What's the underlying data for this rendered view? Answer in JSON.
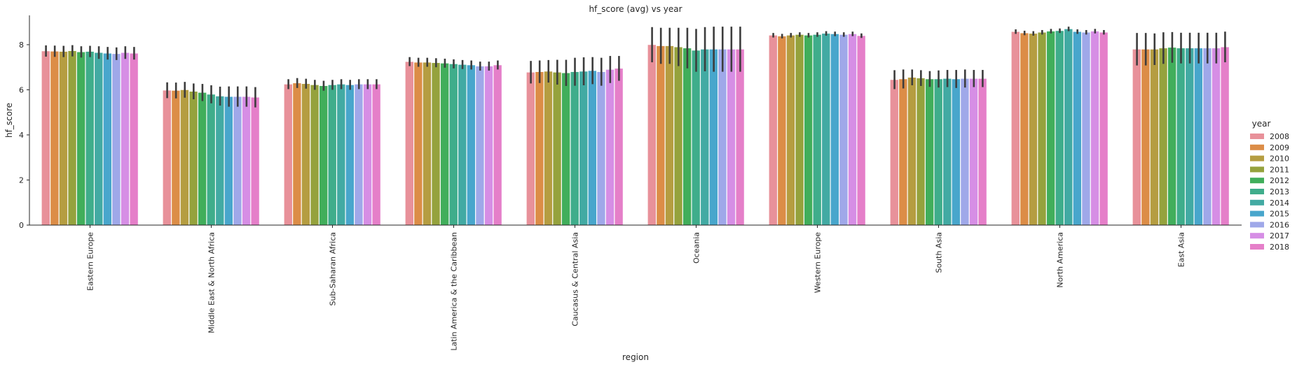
{
  "chart_data": {
    "type": "bar",
    "title": "hf_score (avg) vs year",
    "xlabel": "region",
    "ylabel": "hf_score",
    "ylim": [
      0,
      9.3
    ],
    "yticks": [
      0,
      2,
      4,
      6,
      8
    ],
    "grid": false,
    "legend": {
      "title": "year",
      "placement": "right"
    },
    "categories": [
      "Eastern Europe",
      "Middle East & North Africa",
      "Sub-Saharan Africa",
      "Latin America & the Caribbean",
      "Caucasus & Central Asia",
      "Oceania",
      "Western Europe",
      "South Asia",
      "North America",
      "East Asia"
    ],
    "colors": [
      "#e8919a",
      "#dc8d47",
      "#b59d41",
      "#95a23d",
      "#41ae5b",
      "#3fad8b",
      "#42aaa3",
      "#48a6cc",
      "#9fa8e9",
      "#d68ee5",
      "#e57fc9"
    ],
    "series": [
      {
        "name": "2008",
        "values": [
          7.72,
          5.98,
          6.25,
          7.25,
          6.78,
          8.0,
          8.42,
          6.45,
          8.58,
          7.8
        ],
        "err": [
          0.25,
          0.35,
          0.22,
          0.2,
          0.5,
          0.78,
          0.1,
          0.42,
          0.1,
          0.72
        ]
      },
      {
        "name": "2009",
        "values": [
          7.71,
          5.97,
          6.3,
          7.22,
          6.8,
          7.95,
          8.38,
          6.48,
          8.52,
          7.8
        ],
        "err": [
          0.25,
          0.35,
          0.22,
          0.2,
          0.5,
          0.8,
          0.1,
          0.42,
          0.1,
          0.72
        ]
      },
      {
        "name": "2010",
        "values": [
          7.7,
          6.0,
          6.27,
          7.22,
          6.82,
          7.95,
          8.42,
          6.55,
          8.5,
          7.8
        ],
        "err": [
          0.25,
          0.35,
          0.22,
          0.2,
          0.5,
          0.8,
          0.1,
          0.35,
          0.1,
          0.7
        ]
      },
      {
        "name": "2011",
        "values": [
          7.73,
          5.93,
          6.22,
          7.2,
          6.78,
          7.9,
          8.45,
          6.52,
          8.55,
          7.85
        ],
        "err": [
          0.25,
          0.35,
          0.22,
          0.2,
          0.55,
          0.85,
          0.1,
          0.35,
          0.1,
          0.7
        ]
      },
      {
        "name": "2012",
        "values": [
          7.68,
          5.88,
          6.18,
          7.18,
          6.75,
          7.85,
          8.42,
          6.48,
          8.6,
          7.88
        ],
        "err": [
          0.25,
          0.38,
          0.22,
          0.2,
          0.58,
          0.9,
          0.1,
          0.35,
          0.1,
          0.68
        ]
      },
      {
        "name": "2013",
        "values": [
          7.7,
          5.8,
          6.22,
          7.15,
          6.8,
          7.75,
          8.45,
          6.48,
          8.62,
          7.85
        ],
        "err": [
          0.25,
          0.4,
          0.22,
          0.2,
          0.62,
          0.95,
          0.1,
          0.38,
          0.1,
          0.68
        ]
      },
      {
        "name": "2014",
        "values": [
          7.65,
          5.72,
          6.25,
          7.12,
          6.82,
          7.8,
          8.5,
          6.5,
          8.7,
          7.85
        ],
        "err": [
          0.28,
          0.42,
          0.22,
          0.2,
          0.62,
          0.98,
          0.1,
          0.38,
          0.1,
          0.68
        ]
      },
      {
        "name": "2015",
        "values": [
          7.62,
          5.7,
          6.22,
          7.1,
          6.85,
          7.8,
          8.48,
          6.48,
          8.58,
          7.85
        ],
        "err": [
          0.28,
          0.45,
          0.22,
          0.2,
          0.6,
          1.0,
          0.1,
          0.4,
          0.1,
          0.68
        ]
      },
      {
        "name": "2016",
        "values": [
          7.6,
          5.7,
          6.25,
          7.05,
          6.8,
          7.8,
          8.45,
          6.5,
          8.55,
          7.85
        ],
        "err": [
          0.28,
          0.45,
          0.22,
          0.2,
          0.62,
          1.0,
          0.1,
          0.4,
          0.1,
          0.68
        ]
      },
      {
        "name": "2017",
        "values": [
          7.65,
          5.7,
          6.25,
          7.05,
          6.9,
          7.8,
          8.48,
          6.5,
          8.6,
          7.85
        ],
        "err": [
          0.28,
          0.45,
          0.22,
          0.2,
          0.6,
          1.0,
          0.1,
          0.38,
          0.1,
          0.68
        ]
      },
      {
        "name": "2018",
        "values": [
          7.62,
          5.67,
          6.25,
          7.1,
          6.95,
          7.8,
          8.4,
          6.5,
          8.55,
          7.9
        ],
        "err": [
          0.28,
          0.45,
          0.22,
          0.2,
          0.55,
          1.0,
          0.1,
          0.38,
          0.1,
          0.68
        ]
      }
    ]
  }
}
